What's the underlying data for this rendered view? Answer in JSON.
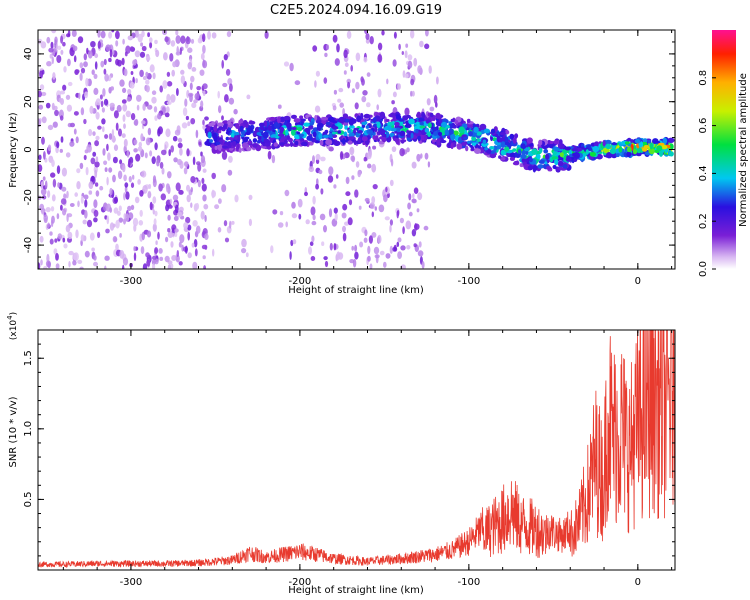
{
  "title": "C2E5.2024.094.16.09.G19",
  "colors": {
    "snr_line": "#e83a2e",
    "axis": "#000000"
  },
  "colorbar": {
    "label": "Normalized spectral amplitude",
    "ticks": [
      "0.0",
      "0.2",
      "0.4",
      "0.6",
      "0.8"
    ],
    "range": [
      0,
      1
    ]
  },
  "chart_data": [
    {
      "type": "heatmap",
      "title": "",
      "xlabel": "Height of straight line (km)",
      "ylabel": "Frequency (Hz)",
      "xlim": [
        -355,
        22
      ],
      "ylim": [
        -50,
        50
      ],
      "x_ticks": [
        -300,
        -200,
        -100,
        0
      ],
      "x_tick_labels": [
        "-300",
        "-200",
        "-100",
        "0"
      ],
      "y_ticks": [
        -40,
        -20,
        0,
        20,
        40
      ],
      "y_tick_labels": [
        "-40",
        "-20",
        "0",
        "20",
        "40"
      ],
      "colorscale": "rainbow (white/violet low to red high)",
      "ridge": {
        "description": "dominant spectral ridge",
        "x": [
          -255,
          -230,
          -200,
          -170,
          -150,
          -125,
          -100,
          -80,
          -60,
          -40,
          -20,
          0,
          20
        ],
        "freq_hz": [
          5,
          6,
          8,
          8,
          9,
          9,
          6,
          2,
          -3,
          -2,
          0,
          1,
          1
        ],
        "amplitude": [
          0.35,
          0.4,
          0.5,
          0.45,
          0.45,
          0.5,
          0.5,
          0.55,
          0.5,
          0.55,
          0.7,
          0.85,
          0.95
        ]
      }
    },
    {
      "type": "line",
      "title": "",
      "xlabel": "Height of straight line (km)",
      "ylabel": "SNR (10 * v/v)",
      "multiplier_label": "(x10",
      "multiplier_exponent": "4",
      "xlim": [
        -355,
        22
      ],
      "ylim": [
        0,
        17000
      ],
      "x_ticks": [
        -300,
        -200,
        -100,
        0
      ],
      "x_tick_labels": [
        "-300",
        "-200",
        "-100",
        "0"
      ],
      "y_ticks": [
        5000,
        10000,
        15000
      ],
      "y_tick_labels": [
        "0.5",
        "1.0",
        "1.5"
      ],
      "series": [
        {
          "x": [
            -355,
            -340,
            -320,
            -300,
            -280,
            -260,
            -240,
            -230,
            -220,
            -210,
            -200,
            -190,
            -180,
            -160,
            -140,
            -120,
            -110,
            -100,
            -90,
            -80,
            -75,
            -70,
            -60,
            -50,
            -45,
            -40,
            -35,
            -30,
            -25,
            -20,
            -18,
            -15,
            -10,
            -5,
            0,
            5,
            10,
            15,
            20
          ],
          "y": [
            400,
            400,
            450,
            450,
            450,
            500,
            700,
            1200,
            900,
            1100,
            1300,
            1100,
            800,
            600,
            800,
            1100,
            1400,
            2000,
            3200,
            4300,
            5200,
            4000,
            3500,
            2700,
            2400,
            3000,
            4000,
            6200,
            9500,
            7500,
            14300,
            11500,
            12200,
            10200,
            12500,
            13800,
            15000,
            13500,
            15500
          ]
        }
      ]
    }
  ]
}
